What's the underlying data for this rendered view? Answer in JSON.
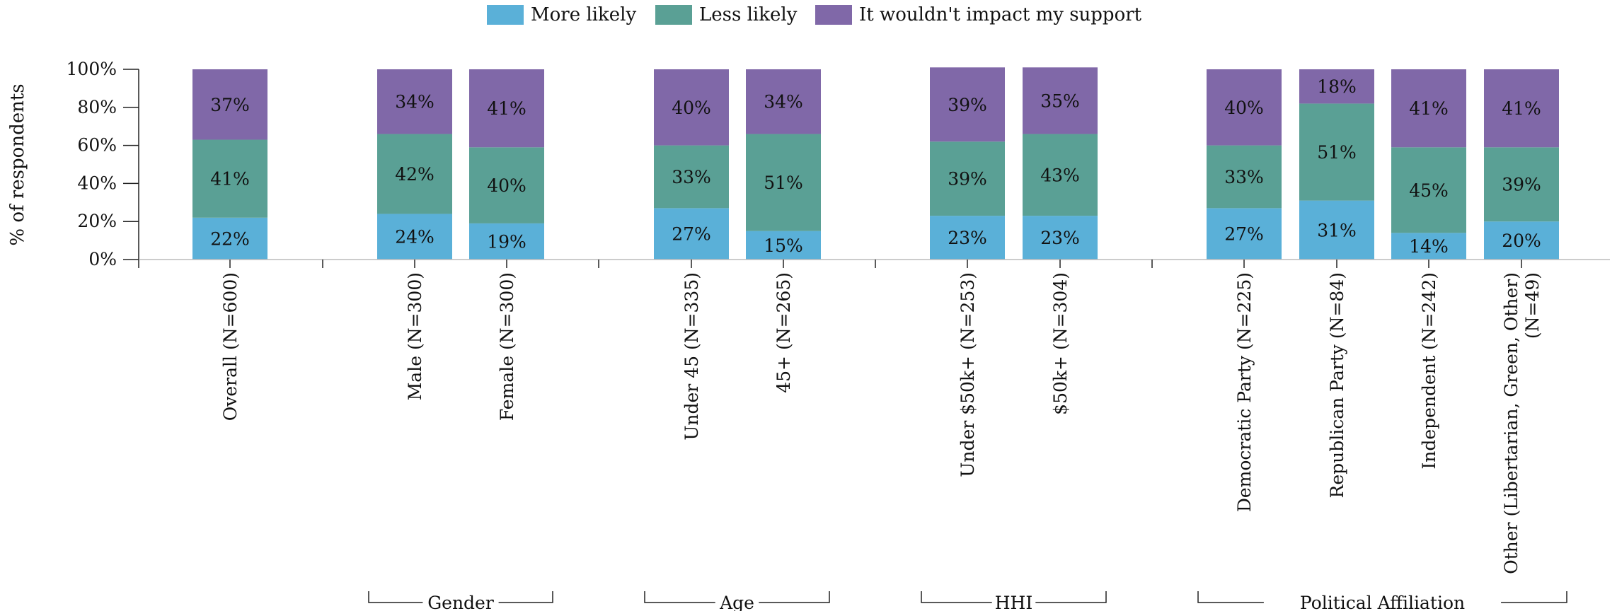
{
  "colors": {
    "more": "#5ab0d8",
    "less": "#5aa095",
    "neutral": "#8068a8",
    "axis": "#222222"
  },
  "chart_data": {
    "type": "bar",
    "stacked": true,
    "ylabel": "% of respondents",
    "ylim": [
      0,
      100
    ],
    "yticks": [
      "0%",
      "20%",
      "40%",
      "60%",
      "80%",
      "100%"
    ],
    "legend_position": "top",
    "series": [
      {
        "name": "More likely",
        "values": [
          22,
          24,
          19,
          27,
          15,
          23,
          23,
          27,
          31,
          14,
          20
        ]
      },
      {
        "name": "Less likely",
        "values": [
          41,
          42,
          40,
          33,
          51,
          39,
          43,
          33,
          51,
          45,
          39
        ]
      },
      {
        "name": "It wouldn't impact my support",
        "values": [
          37,
          34,
          41,
          40,
          34,
          39,
          35,
          40,
          18,
          41,
          41
        ]
      }
    ],
    "categories": [
      [
        "Overall  (N=600)"
      ],
      [
        "Male  (N=300)"
      ],
      [
        "Female  (N=300)"
      ],
      [
        "Under 45  (N=335)"
      ],
      [
        "45+  (N=265)"
      ],
      [
        "Under $50k+  (N=253)"
      ],
      [
        "$50k+  (N=304)"
      ],
      [
        "Democratic Party  (N=225)"
      ],
      [
        "Republican Party  (N=84)"
      ],
      [
        "Independent  (N=242)"
      ],
      [
        "Other (Libertarian, Green, Other)",
        "(N=49)"
      ]
    ],
    "groups": [
      {
        "label": "",
        "members": [
          0
        ]
      },
      {
        "label": "Gender",
        "members": [
          1,
          2
        ]
      },
      {
        "label": "Age",
        "members": [
          3,
          4
        ]
      },
      {
        "label": "HHI",
        "members": [
          5,
          6
        ]
      },
      {
        "label": "Political Affiliation",
        "members": [
          7,
          8,
          9,
          10
        ]
      }
    ]
  }
}
